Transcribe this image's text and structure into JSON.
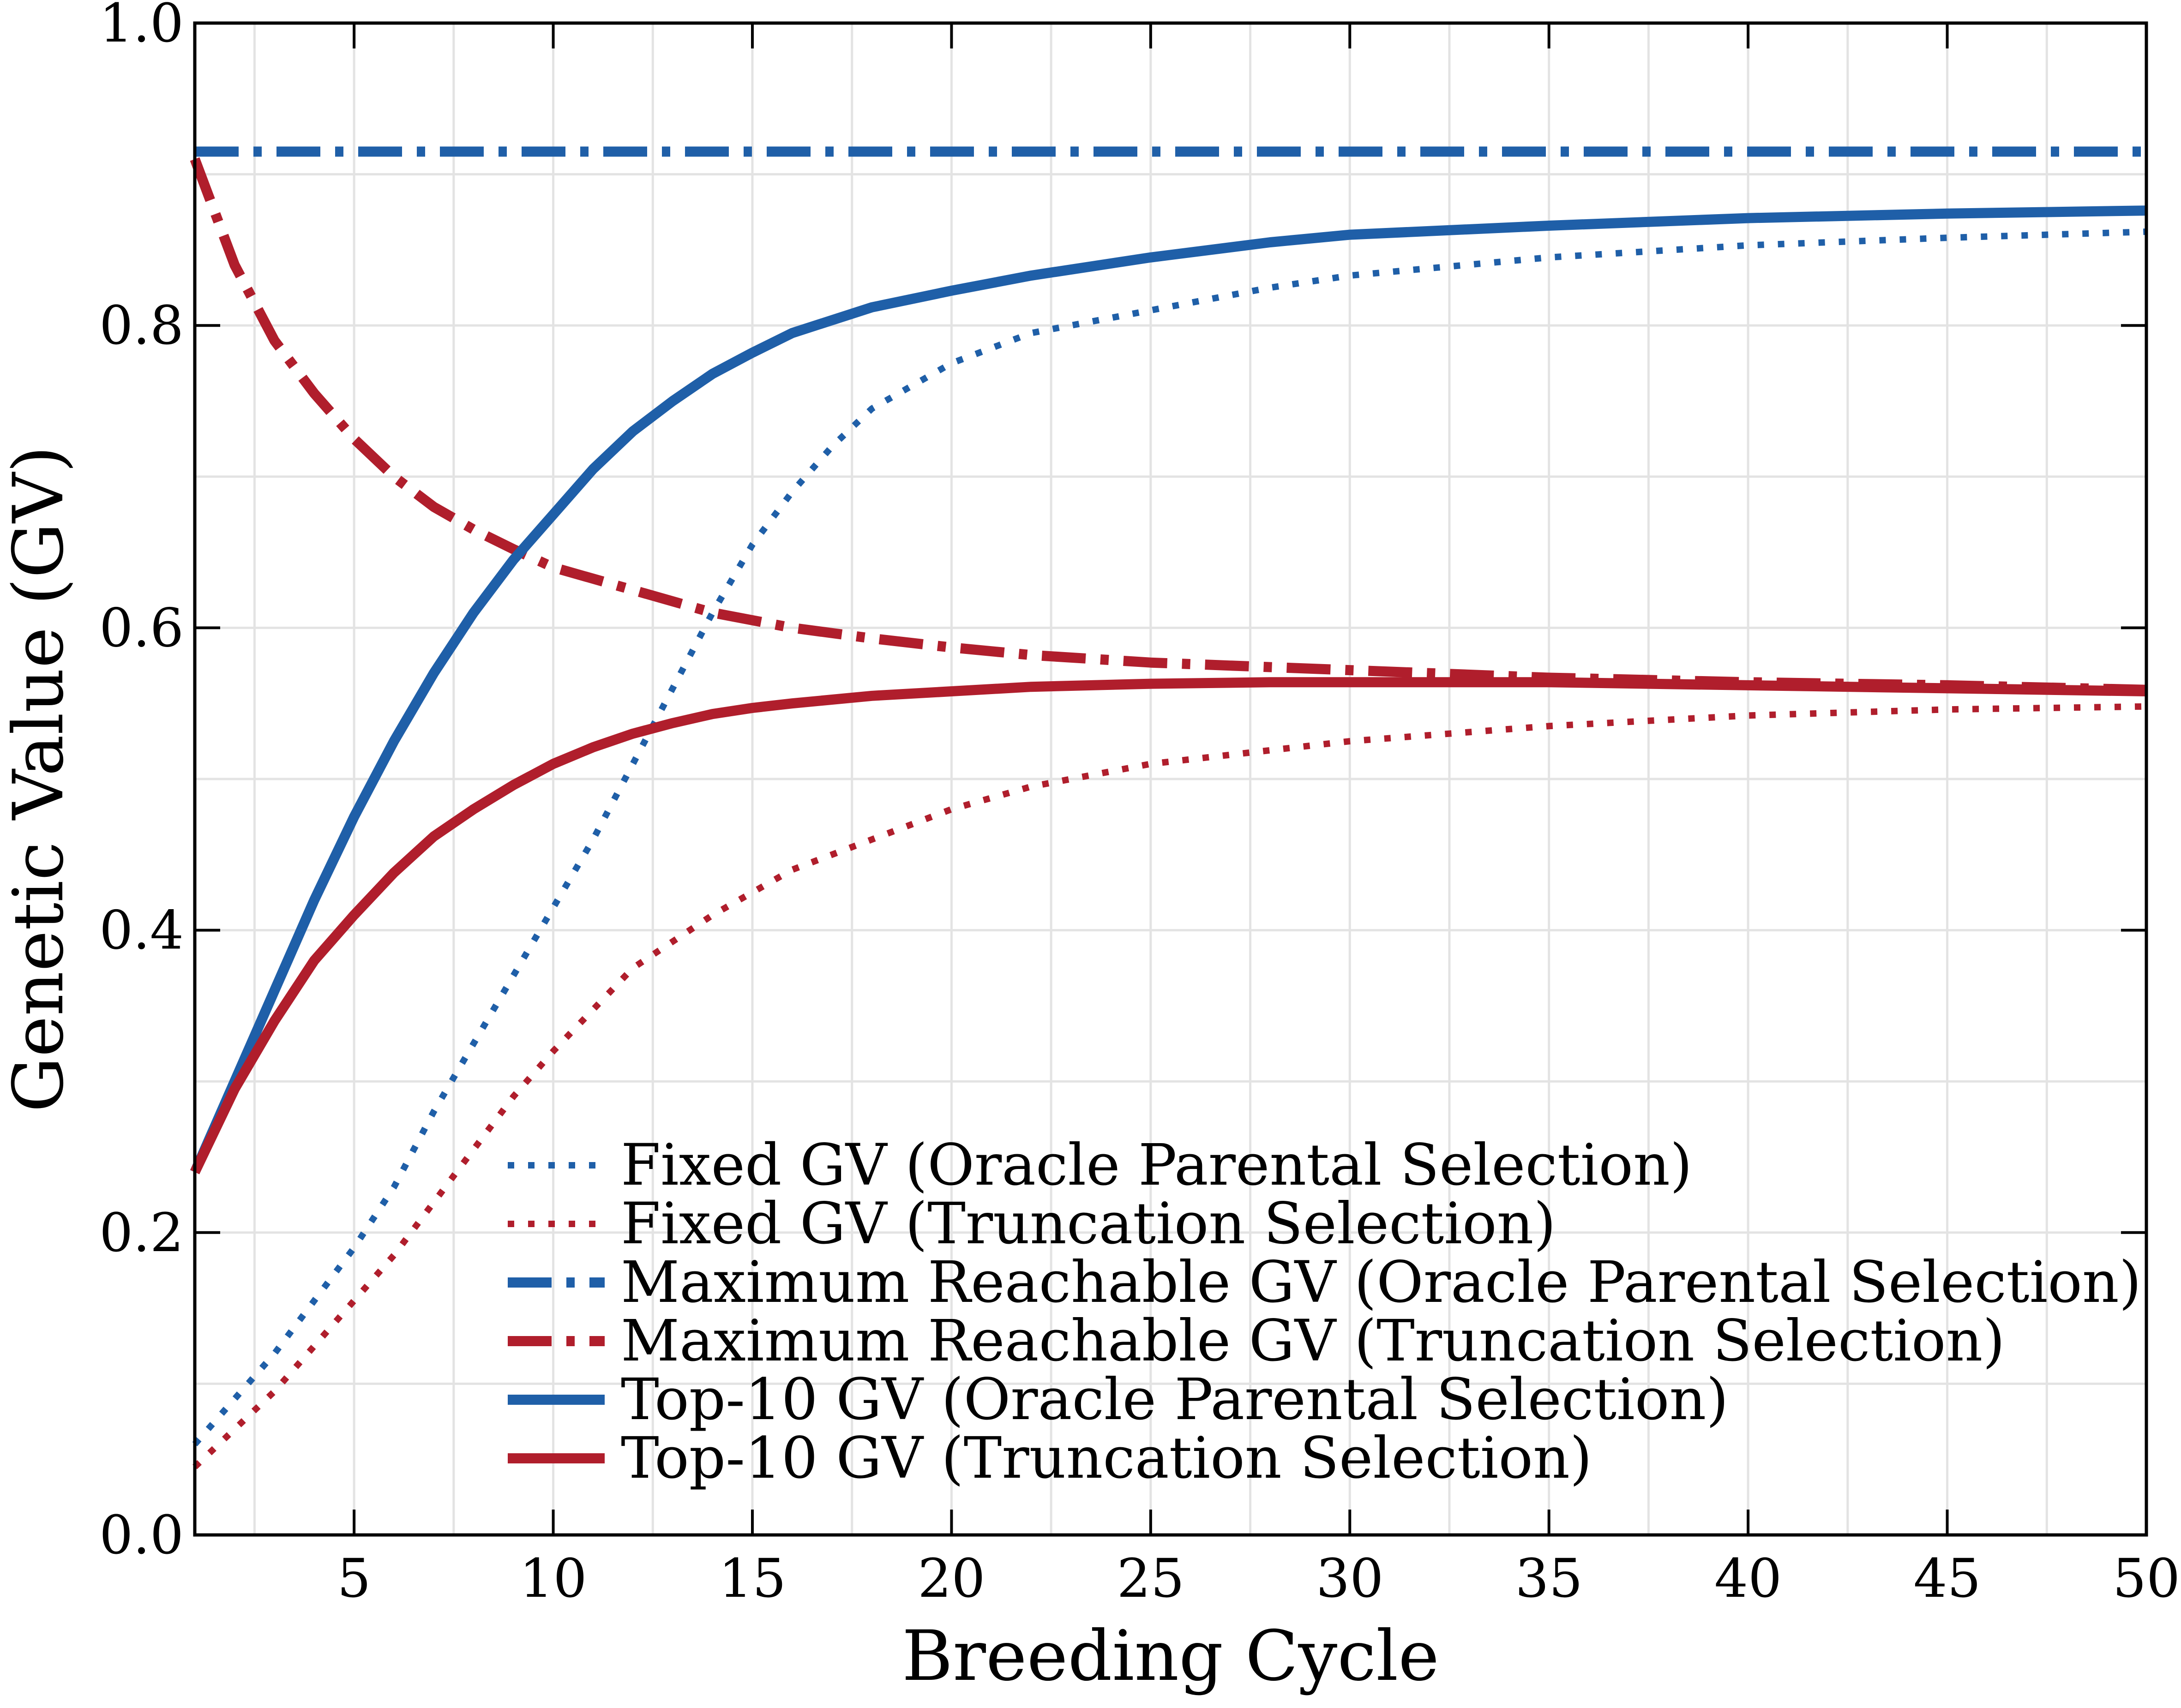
{
  "chart_data": {
    "type": "line",
    "title": "",
    "xlabel": "Breeding Cycle",
    "ylabel": "Genetic Value (GV)",
    "xlim": [
      1,
      50
    ],
    "ylim": [
      0.0,
      1.0
    ],
    "grid": true,
    "legend_position": "bottom-center",
    "x_ticks": [
      5,
      10,
      15,
      20,
      25,
      30,
      35,
      40,
      45,
      50
    ],
    "x_tick_labels": [
      "5",
      "10",
      "15",
      "20",
      "25",
      "30",
      "35",
      "40",
      "45",
      "50"
    ],
    "y_ticks": [
      0.0,
      0.2,
      0.4,
      0.6,
      0.8,
      1.0
    ],
    "y_tick_labels": [
      "0.0",
      "0.2",
      "0.4",
      "0.6",
      "0.8",
      "1.0"
    ],
    "colors": {
      "blue": "#1f5fa8",
      "red": "#b01e2c",
      "grid": "#e3e3e3"
    },
    "series": [
      {
        "name": "Fixed GV (Oracle Parental Selection)",
        "color": "#1f5fa8",
        "style": "dotted",
        "x": [
          1,
          2,
          3,
          4,
          5,
          6,
          7,
          8,
          9,
          10,
          11,
          12,
          13,
          14,
          15,
          16,
          17,
          18,
          20,
          22,
          25,
          28,
          30,
          35,
          40,
          45,
          50
        ],
        "values": [
          0.06,
          0.09,
          0.12,
          0.155,
          0.19,
          0.23,
          0.28,
          0.325,
          0.37,
          0.415,
          0.46,
          0.51,
          0.56,
          0.61,
          0.655,
          0.69,
          0.72,
          0.745,
          0.775,
          0.795,
          0.81,
          0.825,
          0.833,
          0.845,
          0.853,
          0.858,
          0.862
        ]
      },
      {
        "name": "Fixed GV (Truncation Selection)",
        "color": "#b01e2c",
        "style": "dotted",
        "x": [
          1,
          2,
          3,
          4,
          5,
          6,
          7,
          8,
          9,
          10,
          12,
          14,
          16,
          18,
          20,
          22,
          25,
          30,
          35,
          40,
          45,
          50
        ],
        "values": [
          0.045,
          0.07,
          0.095,
          0.125,
          0.155,
          0.185,
          0.22,
          0.255,
          0.29,
          0.32,
          0.375,
          0.41,
          0.44,
          0.46,
          0.48,
          0.495,
          0.51,
          0.525,
          0.535,
          0.542,
          0.546,
          0.548
        ]
      },
      {
        "name": "Maximum Reachable GV (Oracle Parental Selection)",
        "color": "#1f5fa8",
        "style": "dashdot",
        "x": [
          1,
          50
        ],
        "values": [
          0.915,
          0.915
        ]
      },
      {
        "name": "Maximum Reachable GV (Truncation Selection)",
        "color": "#b01e2c",
        "style": "dashdot",
        "x": [
          1,
          2,
          3,
          4,
          5,
          6,
          7,
          8,
          9,
          10,
          12,
          14,
          16,
          18,
          20,
          22,
          25,
          30,
          35,
          40,
          45,
          50
        ],
        "values": [
          0.91,
          0.84,
          0.79,
          0.755,
          0.725,
          0.7,
          0.68,
          0.665,
          0.652,
          0.64,
          0.625,
          0.61,
          0.6,
          0.593,
          0.587,
          0.582,
          0.577,
          0.572,
          0.567,
          0.564,
          0.562,
          0.559
        ]
      },
      {
        "name": "Top-10 GV (Oracle Parental Selection)",
        "color": "#1f5fa8",
        "style": "solid",
        "x": [
          1,
          2,
          3,
          4,
          5,
          6,
          7,
          8,
          9,
          10,
          11,
          12,
          13,
          14,
          15,
          16,
          18,
          20,
          22,
          25,
          28,
          30,
          35,
          40,
          45,
          50
        ],
        "values": [
          0.24,
          0.3,
          0.36,
          0.42,
          0.475,
          0.525,
          0.57,
          0.61,
          0.645,
          0.675,
          0.705,
          0.73,
          0.75,
          0.768,
          0.782,
          0.795,
          0.812,
          0.823,
          0.833,
          0.845,
          0.855,
          0.86,
          0.866,
          0.871,
          0.874,
          0.876
        ]
      },
      {
        "name": "Top-10 GV (Truncation Selection)",
        "color": "#b01e2c",
        "style": "solid",
        "x": [
          1,
          2,
          3,
          4,
          5,
          6,
          7,
          8,
          9,
          10,
          11,
          12,
          13,
          14,
          15,
          16,
          18,
          20,
          22,
          25,
          28,
          30,
          35,
          40,
          45,
          50
        ],
        "values": [
          0.24,
          0.295,
          0.34,
          0.38,
          0.41,
          0.438,
          0.462,
          0.48,
          0.496,
          0.51,
          0.521,
          0.53,
          0.537,
          0.543,
          0.547,
          0.55,
          0.555,
          0.558,
          0.561,
          0.563,
          0.564,
          0.564,
          0.564,
          0.562,
          0.56,
          0.558
        ]
      }
    ]
  }
}
